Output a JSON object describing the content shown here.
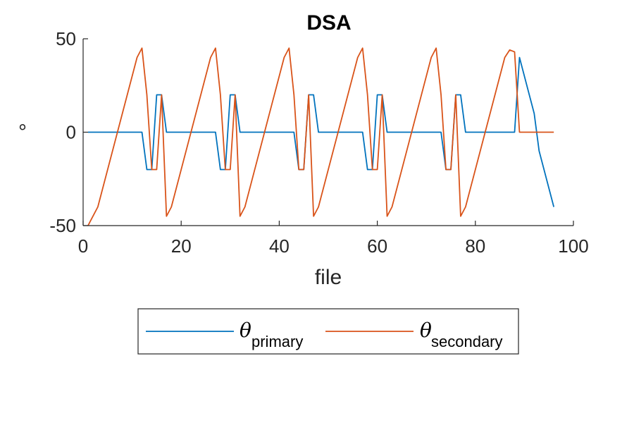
{
  "chart_data": {
    "type": "line",
    "title": "DSA",
    "xlabel": "file",
    "ylabel": "°",
    "xlim": [
      0,
      100
    ],
    "ylim": [
      -50,
      50
    ],
    "xticks": [
      "0",
      "20",
      "40",
      "60",
      "80",
      "100"
    ],
    "yticks": [
      "-50",
      "0",
      "50"
    ],
    "grid": false,
    "legend_position": "bottom-outside",
    "series": [
      {
        "name": "θ",
        "subscript": "primary",
        "color": "#0072BD",
        "x": [
          1,
          2,
          3,
          4,
          5,
          6,
          7,
          8,
          9,
          10,
          11,
          12,
          13,
          14,
          15,
          16,
          17,
          18,
          19,
          20,
          21,
          22,
          23,
          24,
          25,
          26,
          27,
          28,
          29,
          30,
          31,
          32,
          33,
          34,
          35,
          36,
          37,
          38,
          39,
          40,
          41,
          42,
          43,
          44,
          45,
          46,
          47,
          48,
          49,
          50,
          51,
          52,
          53,
          54,
          55,
          56,
          57,
          58,
          59,
          60,
          61,
          62,
          63,
          64,
          65,
          66,
          67,
          68,
          69,
          70,
          71,
          72,
          73,
          74,
          75,
          76,
          77,
          78,
          79,
          80,
          81,
          82,
          83,
          84,
          85,
          86,
          87,
          88,
          89,
          90,
          91,
          92,
          93,
          94,
          95,
          96
        ],
        "values": [
          0,
          0,
          0,
          0,
          0,
          0,
          0,
          0,
          0,
          0,
          0,
          0,
          -20,
          -20,
          20,
          20,
          0,
          0,
          0,
          0,
          0,
          0,
          0,
          0,
          0,
          0,
          0,
          -20,
          -20,
          20,
          20,
          0,
          0,
          0,
          0,
          0,
          0,
          0,
          0,
          0,
          0,
          0,
          0,
          -20,
          -20,
          20,
          20,
          0,
          0,
          0,
          0,
          0,
          0,
          0,
          0,
          0,
          0,
          -20,
          -20,
          20,
          20,
          0,
          0,
          0,
          0,
          0,
          0,
          0,
          0,
          0,
          0,
          0,
          0,
          -20,
          -20,
          20,
          20,
          0,
          0,
          0,
          0,
          0,
          0,
          0,
          0,
          0,
          0,
          0,
          40,
          30,
          20,
          10,
          -10,
          -20,
          -30,
          -40
        ]
      },
      {
        "name": "θ",
        "subscript": "secondary",
        "color": "#D95319",
        "x": [
          1,
          3,
          11,
          12,
          13,
          14,
          15,
          16,
          17,
          18,
          26,
          27,
          28,
          29,
          30,
          31,
          32,
          33,
          41,
          42,
          43,
          44,
          45,
          46,
          47,
          48,
          56,
          57,
          58,
          59,
          60,
          61,
          62,
          63,
          71,
          72,
          73,
          74,
          75,
          76,
          77,
          78,
          86,
          87,
          88,
          89,
          90,
          91,
          92,
          93,
          94,
          95,
          96
        ],
        "values": [
          -50,
          -40,
          40,
          45,
          20,
          -20,
          -20,
          20,
          -45,
          -40,
          40,
          45,
          20,
          -20,
          -20,
          20,
          -45,
          -40,
          40,
          45,
          20,
          -20,
          -20,
          20,
          -45,
          -40,
          40,
          45,
          20,
          -20,
          -20,
          20,
          -45,
          -40,
          40,
          45,
          20,
          -20,
          -20,
          20,
          -45,
          -40,
          40,
          44,
          43,
          0,
          0,
          0,
          0,
          0,
          0,
          0,
          0
        ]
      }
    ]
  }
}
